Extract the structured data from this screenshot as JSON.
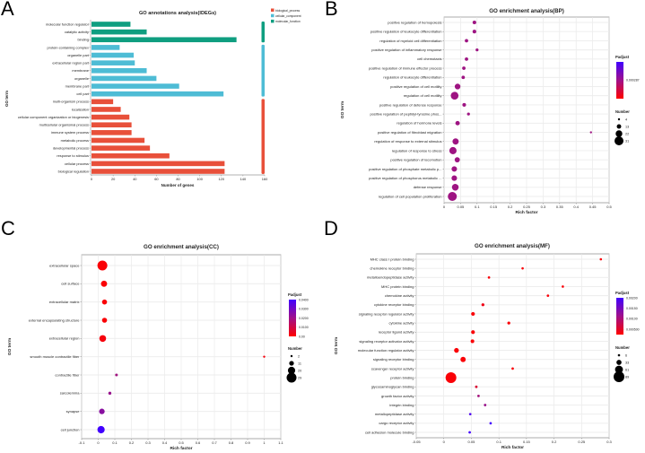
{
  "panels": {
    "a": "A",
    "b": "B",
    "c": "C",
    "d": "D"
  },
  "chart_data": [
    {
      "type": "bar",
      "orientation": "horizontal",
      "title": "GO annotations analysis(lDEGs)",
      "xlabel": "Number of genes",
      "ylabel": "GO term",
      "xlim": [
        0,
        160
      ],
      "xticks": [
        "0",
        "20",
        "40",
        "60",
        "80",
        "100",
        "120",
        "140",
        "160"
      ],
      "legend": [
        {
          "name": "biological_process",
          "color": "#e8503a"
        },
        {
          "name": "cellular_component",
          "color": "#4ebcd5"
        },
        {
          "name": "molecular_function",
          "color": "#0f9e80"
        }
      ],
      "categories": [
        "molecular function regulator",
        "catalytic activity",
        "binding",
        "protein-containing complex",
        "organelle part",
        "extracellular region part",
        "membrane",
        "organelle",
        "membrane part",
        "cell part",
        "multi-organism process",
        "localization",
        "cellular component organization or biogenesis",
        "multicellular organismal process",
        "immune system process",
        "metabolic process",
        "developmental process",
        "response to stimulus",
        "cellular process",
        "biological regulation"
      ],
      "values": [
        36,
        51,
        134,
        26,
        39,
        40,
        51,
        60,
        81,
        122,
        20,
        27,
        35,
        37,
        37,
        49,
        54,
        72,
        123,
        123
      ],
      "groups": [
        2,
        2,
        2,
        1,
        1,
        1,
        1,
        1,
        1,
        1,
        0,
        0,
        0,
        0,
        0,
        0,
        0,
        0,
        0,
        0
      ]
    },
    {
      "type": "scatter",
      "title": "GO enrichment analysis(BP)",
      "xlabel": "Rich factor",
      "ylabel": "GO term",
      "xlim": [
        0,
        0.5
      ],
      "xticks": [
        "0",
        "0.05",
        "0.1",
        "0.15",
        "0.2",
        "0.25",
        "0.3",
        "0.35",
        "0.4",
        "0.45",
        "0.5"
      ],
      "terms": [
        "positive regulation of hemopoiesis",
        "positive regulation of leukocyte differentiation",
        "regulation of myeloid cell differentiation",
        "positive regulation of inflammatory response",
        "cell chemotaxis",
        "positive regulation of immune effector process",
        "regulation of leukocyte differentiation",
        "positive regulation of cell motility",
        "regulation of cell motility",
        "positive regulation of defense response",
        "positive regulation of peptidyl-tyrosine phos...",
        "regulation of hormone levels",
        "positive regulation of fibroblast migration",
        "regulation of response to external stimulus",
        "regulation of response to stress",
        "positive regulation of locomotion",
        "positive regulation of phosphate metabolic p...",
        "positive regulation of phosphorus metabolic ...",
        "defense response",
        "regulation of cell population proliferation"
      ],
      "rich": [
        0.092,
        0.092,
        0.068,
        0.1,
        0.068,
        0.06,
        0.058,
        0.041,
        0.032,
        0.061,
        0.074,
        0.041,
        0.445,
        0.035,
        0.027,
        0.04,
        0.031,
        0.031,
        0.034,
        0.025
      ],
      "count": [
        10,
        10,
        9,
        7,
        9,
        9,
        9,
        18,
        26,
        10,
        7,
        13,
        4,
        20,
        24,
        16,
        17,
        17,
        22,
        31
      ],
      "padj": [
        0.00029,
        0.00029,
        0.00029,
        0.00029,
        0.00029,
        0.00029,
        0.00029,
        0.00029,
        0.00029,
        0.00029,
        0.00029,
        0.00029,
        0.00029,
        0.00029,
        0.00029,
        0.00029,
        0.00029,
        0.00029,
        0.00029,
        0.00029
      ],
      "colorbar": {
        "title": "Padjust",
        "range": [
          7e-05,
          0.0005
        ],
        "ticks": [
          0.000287
        ],
        "tick_labels": [
          "0.000287"
        ]
      },
      "size_legend": {
        "title": "Number",
        "values": [
          4,
          13,
          22,
          31
        ],
        "labels": [
          "4",
          "13",
          "22",
          "31"
        ]
      }
    },
    {
      "type": "scatter",
      "title": "GO enrichment analysis(CC)",
      "xlabel": "Rich factor",
      "ylabel": "GO term",
      "xlim": [
        -0.1,
        1.1
      ],
      "xticks": [
        "-0.1",
        "0",
        "0.1",
        "0.2",
        "0.3",
        "0.4",
        "0.5",
        "0.6",
        "0.7",
        "0.8",
        "0.9",
        "1",
        "1.1"
      ],
      "terms": [
        "extracellular space",
        "cell surface",
        "extracellular matrix",
        "external encapsulating structure",
        "extracellular region",
        "smooth muscle contractile fiber",
        "contractile fiber",
        "sarcolemma",
        "synapse",
        "cell junction"
      ],
      "rich": [
        0.025,
        0.035,
        0.038,
        0.038,
        0.027,
        1.0,
        0.11,
        0.07,
        0.022,
        0.017
      ],
      "count": [
        29,
        16,
        12,
        12,
        18,
        2,
        4,
        5,
        14,
        20
      ],
      "padj": [
        0.001,
        0.001,
        0.001,
        0.001,
        0.002,
        0.002,
        0.02,
        0.022,
        0.025,
        0.04
      ],
      "colorbar": {
        "title": "Padjust",
        "range": [
          0,
          0.04
        ],
        "ticks": [
          0.04,
          0.03,
          0.02,
          0.01,
          0
        ],
        "tick_labels": [
          "0.0400",
          "0.0300",
          "0.0200",
          "0.0100",
          "0.00"
        ]
      },
      "size_legend": {
        "title": "Number",
        "values": [
          2,
          11,
          20,
          29
        ],
        "labels": [
          "2",
          "11",
          "20",
          "29"
        ]
      }
    },
    {
      "type": "scatter",
      "title": "GO enrichment analysis(MF)",
      "xlabel": "Rich factor",
      "ylabel": "GO term",
      "xlim": [
        -0.05,
        0.3
      ],
      "xticks": [
        "-0.05",
        "0",
        "0.05",
        "0.1",
        "0.15",
        "0.2",
        "0.25",
        "0.3"
      ],
      "terms": [
        "MHC class I protein binding",
        "chemokine receptor binding",
        "metalloendopeptidase activity",
        "MHC protein binding",
        "chemokine activity",
        "cytokine receptor binding",
        "signaling receptor regulator activity",
        "cytokine activity",
        "receptor ligand activity",
        "signaling receptor activator activity",
        "molecular function regulator activity",
        "signaling receptor binding",
        "scavenger receptor activity",
        "protein binding",
        "glycosaminoglycan binding",
        "growth factor activity",
        "integrin binding",
        "metallopeptidase activity",
        "cargo receptor activity",
        "cell adhesion molecule binding"
      ],
      "rich": [
        0.285,
        0.143,
        0.082,
        0.216,
        0.189,
        0.071,
        0.053,
        0.118,
        0.053,
        0.052,
        0.023,
        0.035,
        0.125,
        0.013,
        0.059,
        0.063,
        0.075,
        0.048,
        0.085,
        0.047
      ],
      "count": [
        6,
        6,
        7,
        6,
        7,
        12,
        20,
        12,
        20,
        19,
        30,
        35,
        7,
        89,
        8,
        8,
        8,
        7,
        7,
        7
      ],
      "padj": [
        0.0003,
        0.0003,
        0.0003,
        0.0003,
        0.0003,
        0.0004,
        0.0003,
        0.0003,
        0.0003,
        0.0003,
        0.0003,
        0.0003,
        0.0003,
        0.0003,
        0.0006,
        0.0011,
        0.0012,
        0.0019,
        0.002,
        0.002
      ],
      "colorbar": {
        "title": "Padjust",
        "range": [
          0.00025,
          0.002
        ],
        "ticks": [
          0.002,
          0.0015,
          0.001,
          0.0005
        ],
        "tick_labels": [
          "0.00200",
          "0.00150",
          "0.00100",
          "0.000500"
        ]
      },
      "size_legend": {
        "title": "Number",
        "values": [
          6,
          33,
          61,
          89
        ],
        "labels": [
          "6",
          "33",
          "61",
          "89"
        ]
      }
    }
  ]
}
